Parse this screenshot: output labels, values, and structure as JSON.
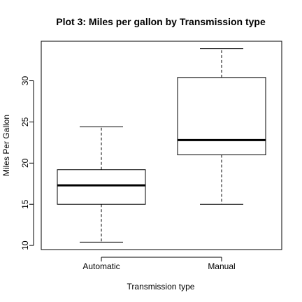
{
  "chart_data": {
    "type": "boxplot",
    "title": "Plot 3: Miles per gallon by Transmission type",
    "xlabel": "Transmission type",
    "ylabel": "Miles Per Gallon",
    "categories": [
      "Automatic",
      "Manual"
    ],
    "series": [
      {
        "category": "Automatic",
        "min": 10.4,
        "q1": 15.0,
        "median": 17.3,
        "q3": 19.2,
        "max": 24.4
      },
      {
        "category": "Manual",
        "min": 15.0,
        "q1": 21.0,
        "median": 22.8,
        "q3": 30.4,
        "max": 33.9
      }
    ],
    "yticks": [
      10,
      15,
      20,
      25,
      30
    ],
    "ylim": [
      9.5,
      34.8
    ],
    "grid": false,
    "legend": "none",
    "colors": {
      "stroke": "#000000",
      "background": "#ffffff"
    }
  }
}
